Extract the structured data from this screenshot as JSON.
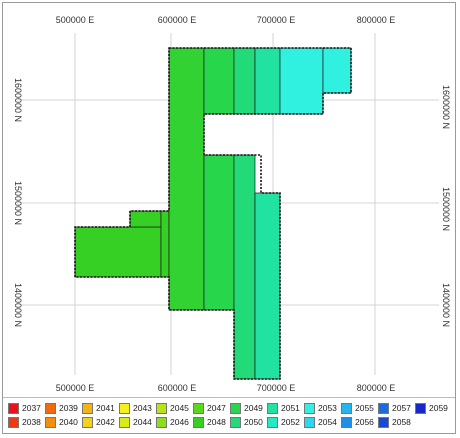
{
  "map": {
    "top_easting_labels": [
      "500000 E",
      "600000 E",
      "700000 E",
      "800000 E"
    ],
    "bottom_easting_labels": [
      "500000 E",
      "600000 E",
      "700000 E",
      "800000 E"
    ],
    "left_northing_labels": [
      "1600000 N",
      "1500000 N",
      "1400000 N"
    ],
    "right_northing_labels": [
      "1600000 N",
      "1500000 N",
      "1400000 N"
    ],
    "outline_color": "#111111",
    "grid_color": "#c8c8c8"
  },
  "chart_data": {
    "type": "heatmap",
    "legend_placement": "bottom",
    "legend": [
      {
        "year": "2037",
        "color": "#e8131a"
      },
      {
        "year": "2038",
        "color": "#ee3a12"
      },
      {
        "year": "2039",
        "color": "#f06a10"
      },
      {
        "year": "2040",
        "color": "#f48e12"
      },
      {
        "year": "2041",
        "color": "#f6b414"
      },
      {
        "year": "2042",
        "color": "#f2d21a"
      },
      {
        "year": "2043",
        "color": "#f4f01c"
      },
      {
        "year": "2044",
        "color": "#d8ec1a"
      },
      {
        "year": "2045",
        "color": "#b6e41a"
      },
      {
        "year": "2046",
        "color": "#8ade1a"
      },
      {
        "year": "2047",
        "color": "#5ad61c"
      },
      {
        "year": "2048",
        "color": "#36d024"
      },
      {
        "year": "2049",
        "color": "#27d64a"
      },
      {
        "year": "2050",
        "color": "#22db78"
      },
      {
        "year": "2051",
        "color": "#22e2a2"
      },
      {
        "year": "2052",
        "color": "#26eac6"
      },
      {
        "year": "2053",
        "color": "#30f0e0"
      },
      {
        "year": "2054",
        "color": "#2cd8f0"
      },
      {
        "year": "2055",
        "color": "#26b4ee"
      },
      {
        "year": "2056",
        "color": "#1e8ee8"
      },
      {
        "year": "2057",
        "color": "#1a6ae2"
      },
      {
        "year": "2058",
        "color": "#1848d8"
      },
      {
        "year": "2059",
        "color": "#1628c8"
      }
    ]
  }
}
